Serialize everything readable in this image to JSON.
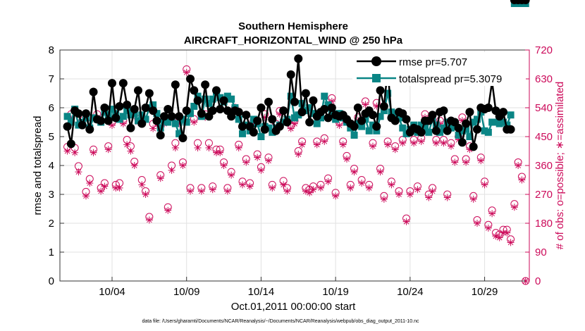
{
  "chart_data": {
    "type": "line",
    "title_line1": "Southern Hemisphere",
    "title_line2": "AIRCRAFT_HORIZONTAL_WIND @ 250 hPa",
    "xlabel": "Oct.01,2011 00:00:00 start",
    "ylabel_left": "rmse and totalspread",
    "ylabel_right": "# of obs: o=possible; ∗=assimilated",
    "footer": "data file: /Users/gharamti/Documents/NCAR/Reanalysis/~/Documents/NCAR/Reanalysis/webpub/obs_diag_output_2011-10.nc",
    "xlim": [
      0.5,
      32.0
    ],
    "ylim_left": [
      0,
      8
    ],
    "ylim_right": [
      0,
      720
    ],
    "x_ticks": [
      4,
      9,
      14,
      19,
      24,
      29
    ],
    "x_tick_labels": [
      "10/04",
      "10/09",
      "10/14",
      "10/19",
      "10/24",
      "10/29"
    ],
    "y_left_ticks": [
      "0",
      "1",
      "2",
      "3",
      "4",
      "5",
      "6",
      "7",
      "8"
    ],
    "y_right_ticks": [
      "0",
      "90",
      "180",
      "270",
      "360",
      "450",
      "540",
      "630",
      "720"
    ],
    "colors": {
      "rmse": "#000000",
      "spread": "#0a8585",
      "obs": "#cc0a5a",
      "grid": "#e2e2e2",
      "axes": "#333333"
    },
    "legend": [
      "rmse pr=5.707",
      "totalspread pr=5.3079"
    ],
    "x": [
      1.0,
      1.25,
      1.5,
      1.75,
      2.0,
      2.25,
      2.5,
      2.75,
      3.0,
      3.25,
      3.5,
      3.75,
      4.0,
      4.25,
      4.5,
      4.75,
      5.0,
      5.25,
      5.5,
      5.75,
      6.0,
      6.25,
      6.5,
      6.75,
      7.0,
      7.25,
      7.5,
      7.75,
      8.0,
      8.25,
      8.5,
      8.75,
      9.0,
      9.25,
      9.5,
      9.75,
      10.0,
      10.25,
      10.5,
      10.75,
      11.0,
      11.25,
      11.5,
      11.75,
      12.0,
      12.25,
      12.5,
      12.75,
      13.0,
      13.25,
      13.5,
      13.75,
      14.0,
      14.25,
      14.5,
      14.75,
      15.0,
      15.25,
      15.5,
      15.75,
      16.0,
      16.25,
      16.5,
      16.75,
      17.0,
      17.25,
      17.5,
      17.75,
      18.0,
      18.25,
      18.5,
      18.75,
      19.0,
      19.25,
      19.5,
      19.75,
      20.0,
      20.25,
      20.5,
      20.75,
      21.0,
      21.25,
      21.5,
      21.75,
      22.0,
      22.25,
      22.5,
      22.75,
      23.0,
      23.25,
      23.5,
      23.75,
      24.0,
      24.25,
      24.5,
      24.75,
      25.0,
      25.25,
      25.5,
      25.75,
      26.0,
      26.25,
      26.5,
      26.75,
      27.0,
      27.25,
      27.5,
      27.75,
      28.0,
      28.25,
      28.5,
      28.75,
      29.0,
      29.25,
      29.5,
      29.75,
      30.0,
      30.25,
      30.5,
      30.75,
      31.0,
      31.25,
      31.5,
      31.75
    ],
    "rmse": [
      5.35,
      4.75,
      5.9,
      5.8,
      5.4,
      5.8,
      5.25,
      6.55,
      5.6,
      5.55,
      6.0,
      5.55,
      6.85,
      5.65,
      6.05,
      6.85,
      6.1,
      5.3,
      5.95,
      6.6,
      5.45,
      6.0,
      6.5,
      5.9,
      5.55,
      5.05,
      5.7,
      5.95,
      5.7,
      6.8,
      5.7,
      4.95,
      5.9,
      7.0,
      6.6,
      6.25,
      5.8,
      6.8,
      5.7,
      5.9,
      6.6,
      5.95,
      6.25,
      5.9,
      5.7,
      5.9,
      5.85,
      5.35,
      5.75,
      5.35,
      5.15,
      5.55,
      6.0,
      5.25,
      6.2,
      5.6,
      5.2,
      5.35,
      5.9,
      5.5,
      7.15,
      6.2,
      7.7,
      5.85,
      6.5,
      5.5,
      6.25,
      5.7,
      5.85,
      5.95,
      5.65,
      6.0,
      5.75,
      5.7,
      5.75,
      5.6,
      5.45,
      5.35,
      6.0,
      5.55,
      5.8,
      5.9,
      5.75,
      5.35,
      6.6,
      6.05,
      7.35,
      5.65,
      5.55,
      5.85,
      5.8,
      5.6,
      5.15,
      5.3,
      5.25,
      5.15,
      5.55,
      5.55,
      5.75,
      5.2,
      5.85,
      5.9,
      5.2,
      5.55,
      5.5,
      5.3,
      4.8,
      5.45,
      5.85,
      4.65,
      5.25,
      6.0,
      5.95,
      6.0,
      6.9,
      5.9,
      5.7,
      5.85,
      5.25,
      5.25
    ],
    "spread": [
      5.7,
      5.5,
      5.95,
      5.4,
      5.5,
      5.65,
      5.3,
      5.65,
      5.6,
      5.5,
      5.85,
      5.75,
      5.95,
      5.8,
      5.6,
      5.7,
      5.9,
      5.75,
      5.8,
      5.55,
      5.75,
      5.6,
      6.0,
      6.1,
      5.8,
      5.3,
      5.55,
      5.5,
      5.65,
      5.45,
      5.1,
      5.6,
      5.5,
      5.8,
      6.05,
      6.4,
      5.7,
      6.3,
      6.15,
      6.3,
      6.55,
      6.35,
      6.2,
      6.4,
      6.3,
      6.0,
      5.6,
      5.1,
      5.4,
      5.2,
      5.6,
      5.45,
      5.0,
      5.35,
      5.3,
      5.15,
      5.3,
      5.4,
      5.5,
      5.6,
      6.4,
      5.65,
      5.75,
      6.15,
      5.9,
      6.0,
      5.8,
      5.45,
      5.65,
      6.4,
      6.1,
      5.85,
      5.6,
      5.8,
      5.65,
      5.5,
      5.3,
      5.05,
      5.45,
      5.35,
      5.6,
      5.2,
      5.4,
      5.2,
      5.7,
      5.9,
      6.5,
      5.85,
      5.7,
      5.65,
      5.3,
      5.1,
      5.25,
      5.4,
      5.15,
      5.4,
      5.3,
      5.15,
      5.6,
      5.4,
      5.15,
      5.3,
      5.5,
      5.3,
      5.35,
      5.05,
      5.2,
      5.25,
      5.0,
      5.5,
      5.6,
      5.85,
      5.2,
      5.15,
      5.5,
      5.5,
      5.45,
      5.5,
      5.4,
      5.75
    ],
    "obs_possible": [
      418,
      520,
      415,
      358,
      500,
      278,
      318,
      410,
      520,
      290,
      305,
      420,
      495,
      300,
      305,
      500,
      440,
      420,
      372,
      505,
      315,
      280,
      200,
      490,
      500,
      330,
      500,
      230,
      360,
      430,
      500,
      370,
      660,
      290,
      505,
      430,
      290,
      520,
      430,
      295,
      410,
      410,
      370,
      290,
      340,
      540,
      425,
      310,
      380,
      305,
      500,
      395,
      355,
      520,
      385,
      300,
      490,
      530,
      312,
      290,
      485,
      500,
      405,
      435,
      290,
      285,
      295,
      435,
      300,
      445,
      320,
      570,
      275,
      495,
      435,
      390,
      300,
      350,
      510,
      315,
      560,
      300,
      430,
      555,
      350,
      265,
      435,
      310,
      420,
      280,
      440,
      195,
      280,
      440,
      295,
      445,
      520,
      270,
      290,
      440,
      500,
      440,
      270,
      430,
      380,
      450,
      510,
      380,
      420,
      265,
      190,
      385,
      310,
      175,
      220,
      150,
      145,
      160,
      160,
      130,
      240,
      370,
      325,
      0
    ],
    "obs_assimilated": [
      405,
      505,
      400,
      340,
      490,
      265,
      305,
      400,
      510,
      280,
      295,
      410,
      485,
      290,
      290,
      490,
      425,
      405,
      360,
      495,
      300,
      270,
      190,
      475,
      490,
      320,
      490,
      220,
      345,
      415,
      490,
      360,
      650,
      280,
      495,
      415,
      280,
      510,
      415,
      285,
      400,
      400,
      360,
      280,
      330,
      530,
      415,
      300,
      370,
      295,
      490,
      385,
      345,
      510,
      375,
      290,
      475,
      520,
      300,
      280,
      475,
      490,
      395,
      425,
      280,
      275,
      285,
      425,
      290,
      435,
      310,
      560,
      265,
      485,
      425,
      380,
      290,
      340,
      500,
      305,
      550,
      290,
      420,
      545,
      340,
      255,
      425,
      300,
      410,
      270,
      430,
      185,
      270,
      430,
      285,
      435,
      510,
      260,
      280,
      430,
      490,
      430,
      260,
      420,
      370,
      440,
      500,
      370,
      410,
      255,
      180,
      375,
      300,
      165,
      210,
      140,
      135,
      150,
      150,
      120,
      230,
      360,
      315,
      0
    ]
  }
}
